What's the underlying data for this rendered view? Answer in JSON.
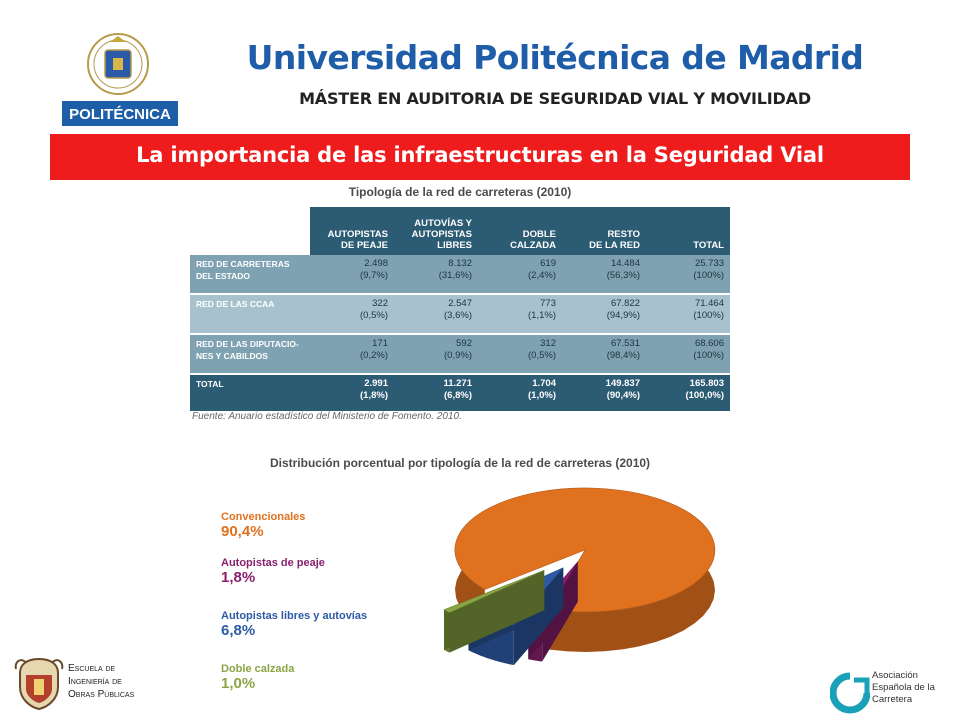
{
  "header": {
    "logo_text": "POLITÉCNICA",
    "title": "Universidad Politécnica de Madrid",
    "subtitle": "MÁSTER EN AUDITORIA DE SEGURIDAD VIAL Y MOVILIDAD",
    "banner": "La importancia de las infraestructuras en la Seguridad Vial",
    "banner_color": "#ee1c1c",
    "title_color": "#1f5da8"
  },
  "table": {
    "title": "Tipología de la red de carreteras (2010)",
    "columns": [
      "AUTOPISTAS\nDE PEAJE",
      "AUTOVÍAS Y\nAUTOPISTAS\nLIBRES",
      "DOBLE\nCALZADA",
      "RESTO\nDE LA RED",
      "TOTAL"
    ],
    "rows": [
      {
        "label": "RED DE CARRETERAS\nDEL ESTADO",
        "cells": [
          "2.498\n(9,7%)",
          "8.132\n(31,6%)",
          "619\n(2,4%)",
          "14.484\n(56,3%)",
          "25.733\n(100%)"
        ]
      },
      {
        "label": "RED DE LAS CCAA",
        "cells": [
          "322\n(0,5%)",
          "2.547\n(3,6%)",
          "773\n(1,1%)",
          "67.822\n(94,9%)",
          "71.464\n(100%)"
        ]
      },
      {
        "label": "RED DE LAS DIPUTACIO-\nNES Y CABILDOS",
        "cells": [
          "171\n(0,2%)",
          "592\n(0,9%)",
          "312\n(0,5%)",
          "67.531\n(98,4%)",
          "68.606\n(100%)"
        ]
      },
      {
        "label": "TOTAL",
        "cells": [
          "2.991\n(1,8%)",
          "11.271\n(6,8%)",
          "1.704\n(1,0%)",
          "149.837\n(90,4%)",
          "165.803\n(100,0%)"
        ]
      }
    ],
    "header_color": "#2c5b74",
    "source": "Fuente: Anuario estadístico del Ministerio de Fomento. 2010."
  },
  "chart_data": {
    "type": "pie",
    "title": "Distribución porcentual por tipología de la red de carreteras (2010)",
    "slices": [
      {
        "name": "Convencionales",
        "value": 90.4,
        "label": "90,4%",
        "color": "#e0711e"
      },
      {
        "name": "Autopistas de peaje",
        "value": 1.8,
        "label": "1,8%",
        "color": "#8a1f6e"
      },
      {
        "name": "Autopistas libres y autovías",
        "value": 6.8,
        "label": "6,8%",
        "color": "#2d5aa5"
      },
      {
        "name": "Doble calzada",
        "value": 1.0,
        "label": "1,0%",
        "color": "#8aa644"
      }
    ],
    "legend_position": "left"
  },
  "footer": {
    "etsi_lines": [
      "Escuela de",
      "Ingeniería de",
      "Obras Públicas"
    ],
    "aec_lines": [
      "Asociación",
      "Española de la",
      "Carretera"
    ],
    "aec_color": "#1aa0b8"
  }
}
